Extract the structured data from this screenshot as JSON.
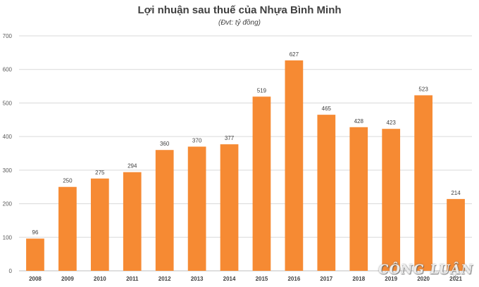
{
  "colors": {
    "bar": "#f68a33",
    "grid": "#d9d9d9",
    "axis": "#bfbfbf"
  },
  "watermark": "CÔNG LUẬN",
  "chart_data": {
    "type": "bar",
    "title": "Lợi nhuận sau thuế của Nhựa Bình Minh",
    "subtitle": "(Đvt: tỷ đồng)",
    "xlabel": "",
    "ylabel": "",
    "ylim": [
      0,
      700
    ],
    "yticks": [
      0,
      100,
      200,
      300,
      400,
      500,
      600,
      700
    ],
    "grid": true,
    "categories": [
      "2008",
      "2009",
      "2010",
      "2011",
      "2012",
      "2013",
      "2014",
      "2015",
      "2016",
      "2017",
      "2018",
      "2019",
      "2020",
      "2021"
    ],
    "values": [
      96,
      250,
      275,
      294,
      360,
      370,
      377,
      519,
      627,
      465,
      428,
      423,
      523,
      214
    ]
  }
}
